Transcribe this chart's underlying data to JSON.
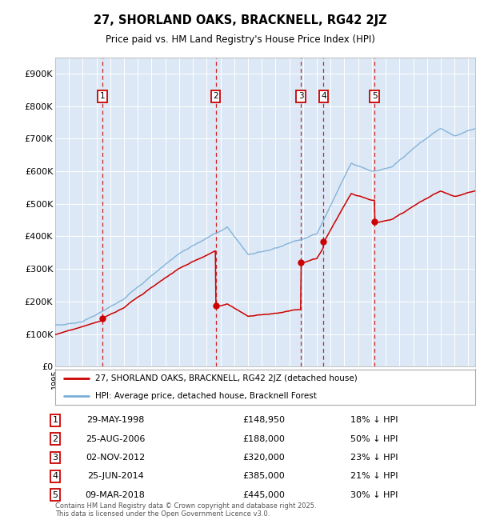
{
  "title": "27, SHORLAND OAKS, BRACKNELL, RG42 2JZ",
  "subtitle": "Price paid vs. HM Land Registry's House Price Index (HPI)",
  "legend_line1": "27, SHORLAND OAKS, BRACKNELL, RG42 2JZ (detached house)",
  "legend_line2": "HPI: Average price, detached house, Bracknell Forest",
  "footer": "Contains HM Land Registry data © Crown copyright and database right 2025.\nThis data is licensed under the Open Government Licence v3.0.",
  "sale_dates_num": [
    1998.41,
    2006.65,
    2012.84,
    2014.49,
    2018.19
  ],
  "sale_prices": [
    148950,
    188000,
    320000,
    385000,
    445000
  ],
  "sale_labels": [
    "1",
    "2",
    "3",
    "4",
    "5"
  ],
  "sale_info": [
    "29-MAY-1998",
    "£148,950",
    "18% ↓ HPI",
    "25-AUG-2006",
    "£188,000",
    "50% ↓ HPI",
    "02-NOV-2012",
    "£320,000",
    "23% ↓ HPI",
    "25-JUN-2014",
    "£385,000",
    "21% ↓ HPI",
    "09-MAR-2018",
    "£445,000",
    "30% ↓ HPI"
  ],
  "hpi_color": "#7aaed6",
  "sale_color": "#cc0000",
  "dashed_line_color": "#cc0000",
  "ylim": [
    0,
    950000
  ],
  "yticks": [
    0,
    100000,
    200000,
    300000,
    400000,
    500000,
    600000,
    700000,
    800000,
    900000
  ],
  "ytick_labels": [
    "£0",
    "£100K",
    "£200K",
    "£300K",
    "£400K",
    "£500K",
    "£600K",
    "£700K",
    "£800K",
    "£900K"
  ],
  "plot_bg_color": "#dce8f5",
  "fig_bg_color": "#ffffff",
  "xstart": 1995.0,
  "xend": 2025.5
}
